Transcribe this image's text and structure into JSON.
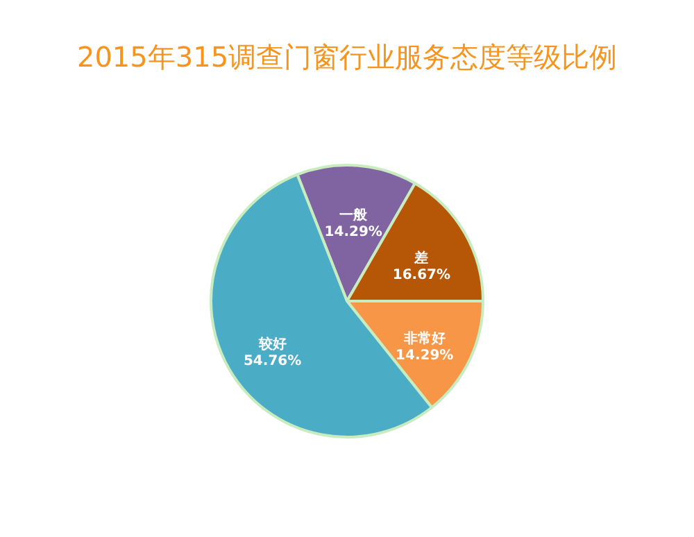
{
  "chart_data": {
    "type": "pie",
    "title": "2015年315调查门窗行业服务态度等级比例",
    "categories": [
      "一般",
      "差",
      "非常好",
      "较好"
    ],
    "values": [
      14.29,
      16.67,
      14.29,
      54.76
    ],
    "value_labels": [
      "14.29%",
      "16.67%",
      "14.29%",
      "54.76%"
    ],
    "colors": [
      "#8064a2",
      "#b65708",
      "#f79646",
      "#4bacc6"
    ],
    "legend": false
  }
}
